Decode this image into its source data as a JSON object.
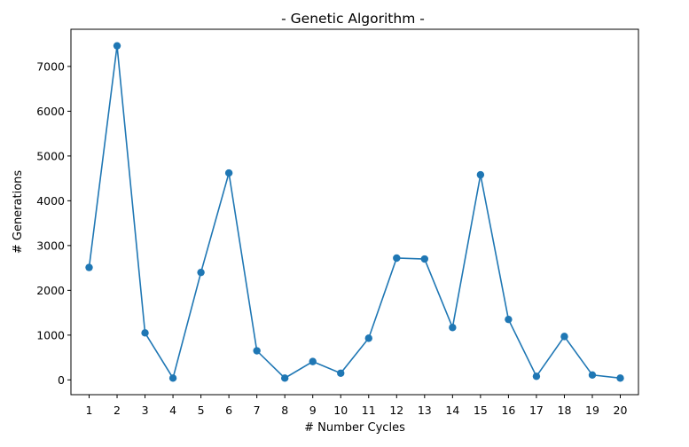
{
  "chart_data": {
    "type": "line",
    "title": "- Genetic Algorithm -",
    "xlabel": "# Number Cycles",
    "ylabel": "# Generations",
    "x": [
      1,
      2,
      3,
      4,
      5,
      6,
      7,
      8,
      9,
      10,
      11,
      12,
      13,
      14,
      15,
      16,
      17,
      18,
      19,
      20
    ],
    "x_ticks": [
      "1",
      "2",
      "3",
      "4",
      "5",
      "6",
      "7",
      "8",
      "9",
      "10",
      "11",
      "12",
      "13",
      "14",
      "15",
      "16",
      "17",
      "18",
      "19",
      "20"
    ],
    "y_ticks": [
      0,
      1000,
      2000,
      3000,
      4000,
      5000,
      6000,
      7000
    ],
    "ylim": [
      -330,
      7830
    ],
    "xlim": [
      0.35,
      20.65
    ],
    "grid": false,
    "legend": "none",
    "series": [
      {
        "color": "#1f77b4",
        "marker": "circle",
        "values": [
          2510,
          7460,
          1050,
          40,
          2400,
          4620,
          650,
          40,
          410,
          150,
          930,
          2720,
          2700,
          1170,
          4580,
          1350,
          80,
          970,
          110,
          40
        ]
      }
    ]
  }
}
